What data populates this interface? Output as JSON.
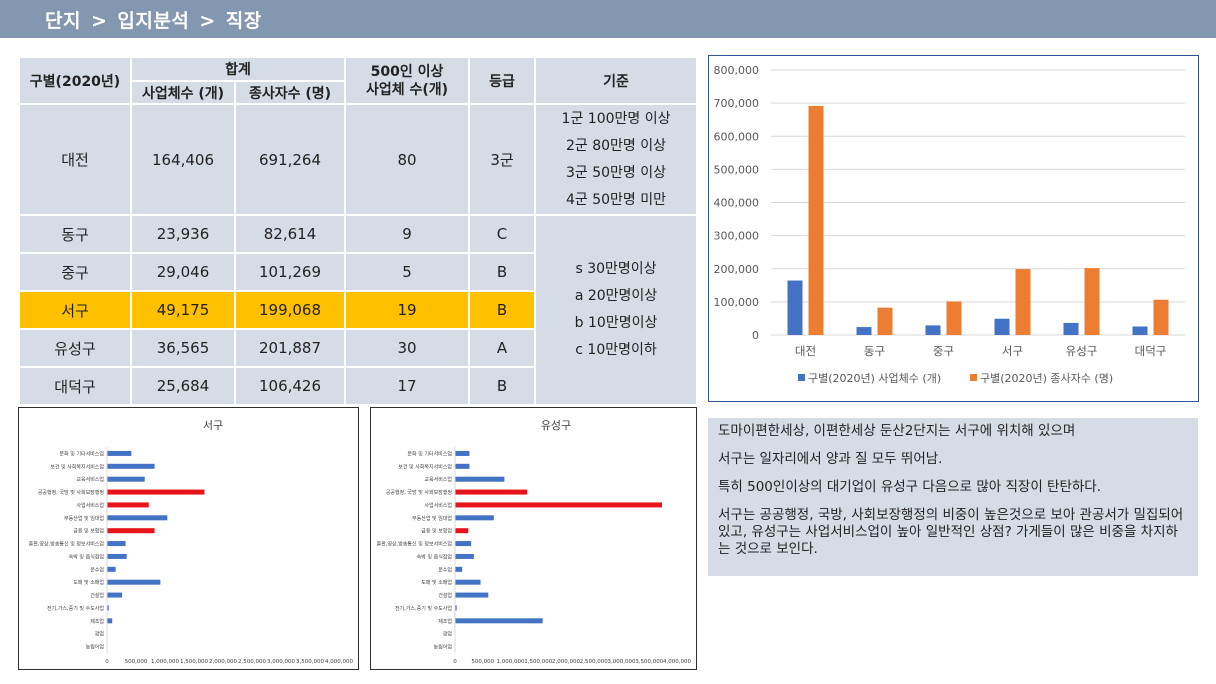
{
  "header": {
    "crumbs": [
      "단지",
      "입지분석",
      "직장"
    ],
    "separator": ">"
  },
  "table": {
    "headers": {
      "region": "구별(2020년)",
      "total": "합계",
      "businesses": "사업체수 (개)",
      "workers": "종사자수 (명)",
      "large_line1": "500인 이상",
      "large_line2": "사업체 수(개)",
      "grade": "등급",
      "criteria": "기준"
    },
    "rows": [
      {
        "region": "대전",
        "businesses": "164,406",
        "workers": "691,264",
        "large": "80",
        "grade": "3군"
      },
      {
        "region": "동구",
        "businesses": "23,936",
        "workers": "82,614",
        "large": "9",
        "grade": "C"
      },
      {
        "region": "중구",
        "businesses": "29,046",
        "workers": "101,269",
        "large": "5",
        "grade": "B"
      },
      {
        "region": "서구",
        "businesses": "49,175",
        "workers": "199,068",
        "large": "19",
        "grade": "B"
      },
      {
        "region": "유성구",
        "businesses": "36,565",
        "workers": "201,887",
        "large": "30",
        "grade": "A"
      },
      {
        "region": "대덕구",
        "businesses": "25,684",
        "workers": "106,426",
        "large": "17",
        "grade": "B"
      }
    ],
    "criteria_city": [
      "1군 100만명 이상",
      "2군 80만명 이상",
      "3군 50만명 이상",
      "4군 50만명 미만"
    ],
    "criteria_district": [
      "s 30만명이상",
      "a 20만명이상",
      "b 10만명이상",
      "c 10만명이하"
    ]
  },
  "colors": {
    "header_bg": "#8497b0",
    "table_bg": "#d6dce5",
    "highlight": "#ffc000",
    "series_blue": "#4472c4",
    "series_orange": "#ed7d31",
    "bar_red": "#e8141c"
  },
  "chart_data": [
    {
      "type": "bar",
      "categories": [
        "대전",
        "동구",
        "중구",
        "서구",
        "유성구",
        "대덕구"
      ],
      "series": [
        {
          "name": "구별(2020년) 사업체수 (개)",
          "values": [
            164406,
            23936,
            29046,
            49175,
            36565,
            25684
          ]
        },
        {
          "name": "구별(2020년) 종사자수 (명)",
          "values": [
            691264,
            82614,
            101269,
            199068,
            201887,
            106426
          ]
        }
      ],
      "ylim": [
        0,
        800000
      ],
      "yticks": [
        "0",
        "100,000",
        "200,000",
        "300,000",
        "400,000",
        "500,000",
        "600,000",
        "700,000",
        "800,000"
      ],
      "grid": true,
      "legend": "bottom"
    },
    {
      "type": "bar",
      "orientation": "horizontal",
      "title": "서구",
      "categories": [
        "문화 및 기타서비스업",
        "보건 및 사회복지서비스업",
        "교육서비스업",
        "공공행정, 국방 및 사회보장행정",
        "사업서비스업",
        "부동산업 및 임대업",
        "금융 및 보험업",
        "출판,영상,방송통신 및 정보서비스업",
        "숙박 및 음식점업",
        "운수업",
        "도매 및 소매업",
        "건설업",
        "전기,가스,증기 및 수도사업",
        "제조업",
        "광업",
        "농림어업"
      ],
      "values": [
        420000,
        820000,
        650000,
        1680000,
        720000,
        1040000,
        820000,
        320000,
        340000,
        150000,
        920000,
        260000,
        30000,
        90000,
        0,
        0
      ],
      "highlighted": [
        3,
        4,
        6
      ],
      "xlim": [
        0,
        4000000
      ],
      "xticks": [
        "0",
        "500,000",
        "1,000,000",
        "1,500,000",
        "2,000,000",
        "2,500,000",
        "3,000,000",
        "3,500,000",
        "4,000,000"
      ]
    },
    {
      "type": "bar",
      "orientation": "horizontal",
      "title": "유성구",
      "categories": [
        "문화 및 기타서비스업",
        "보건 및 사회복지서비스업",
        "교육서비스업",
        "공공행정, 국방 및 사회보장행정",
        "사업서비스업",
        "부동산업 및 임대업",
        "금융 및 보험업",
        "출판,영상,방송통신 및 정보서비스업",
        "숙박 및 음식점업",
        "운수업",
        "도매 및 소매업",
        "건설업",
        "전기,가스,증기 및 수도사업",
        "제조업",
        "광업",
        "농림어업"
      ],
      "values": [
        260000,
        260000,
        890000,
        1300000,
        3730000,
        700000,
        240000,
        290000,
        340000,
        130000,
        460000,
        600000,
        30000,
        1580000,
        0,
        0
      ],
      "highlighted": [
        3,
        4,
        6
      ],
      "xlim": [
        0,
        4000000
      ],
      "xticks": [
        "0",
        "500,000",
        "1,000,000",
        "1,500,000",
        "2,000,000",
        "2,500,000",
        "3,000,000",
        "3,500,000",
        "4,000,000"
      ]
    }
  ],
  "summary": [
    "도마이편한세상, 이편한세상 둔산2단지는 서구에 위치해 있으며",
    "서구는 일자리에서 양과 질 모두 뛰어남.",
    "특히 500인이상의 대기업이 유성구 다음으로 많아 직장이 탄탄하다.",
    "서구는 공공행정, 국방, 사회보장행정의 비중이 높은것으로 보아 관공서가 밀집되어 있고, 유성구는 사업서비스업이 높아 일반적인 상점? 가게들이 많은 비중을 차지하는 것으로 보인다."
  ]
}
